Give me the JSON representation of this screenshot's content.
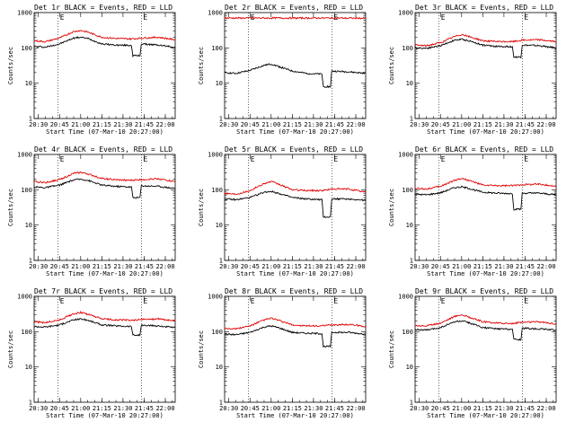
{
  "chart_data": [
    {
      "type": "line",
      "title": "Det 1r BLACK = Events, RED = LLD",
      "xlabel": "Start Time (07-Mar-10 20:27:00)",
      "ylabel": "Counts/sec",
      "ylim": [
        1,
        1000
      ],
      "yscale": "log",
      "xlim": [
        "20:27",
        "22:07"
      ],
      "xticks": [
        "20:30",
        "20:45",
        "21:00",
        "21:15",
        "21:30",
        "21:45",
        "22:00"
      ],
      "yticks": [
        "1",
        "10",
        "100",
        "1000"
      ],
      "markers": [
        {
          "x": "20:44",
          "label": "E"
        },
        {
          "x": "21:43",
          "label": "E"
        }
      ],
      "series": [
        {
          "name": "Events",
          "color": "#000000",
          "x": [
            "20:27",
            "20:35",
            "20:45",
            "20:55",
            "21:00",
            "21:05",
            "21:15",
            "21:25",
            "21:36",
            "21:37",
            "21:42",
            "21:43",
            "21:55",
            "22:07"
          ],
          "values": [
            110,
            105,
            130,
            190,
            200,
            185,
            130,
            120,
            118,
            60,
            60,
            130,
            120,
            105
          ]
        },
        {
          "name": "LLD",
          "color": "#e00000",
          "x": [
            "20:27",
            "20:35",
            "20:45",
            "20:55",
            "21:00",
            "21:05",
            "21:15",
            "21:25",
            "21:36",
            "21:43",
            "21:55",
            "22:07"
          ],
          "values": [
            160,
            150,
            190,
            290,
            310,
            280,
            200,
            185,
            180,
            190,
            200,
            170
          ]
        }
      ]
    },
    {
      "type": "line",
      "title": "Det 2r BLACK = Events, RED = LLD",
      "xlabel": "Start Time (07-Mar-10 20:27:00)",
      "ylabel": "Counts/sec",
      "ylim": [
        1,
        1000
      ],
      "yscale": "log",
      "xlim": [
        "20:27",
        "22:07"
      ],
      "xticks": [
        "20:30",
        "20:45",
        "21:00",
        "21:15",
        "21:30",
        "21:45",
        "22:00"
      ],
      "yticks": [
        "1",
        "10",
        "100",
        "1000"
      ],
      "markers": [
        {
          "x": "20:44",
          "label": "E"
        },
        {
          "x": "21:43",
          "label": "E"
        }
      ],
      "series": [
        {
          "name": "Events",
          "color": "#000000",
          "x": [
            "20:27",
            "20:35",
            "20:45",
            "20:55",
            "21:00",
            "21:05",
            "21:15",
            "21:25",
            "21:36",
            "21:37",
            "21:42",
            "21:43",
            "21:55",
            "22:07"
          ],
          "values": [
            20,
            19,
            23,
            32,
            35,
            30,
            22,
            19,
            18,
            8,
            8,
            22,
            21,
            19
          ]
        },
        {
          "name": "LLD",
          "color": "#e00000",
          "x": [
            "20:27",
            "20:45",
            "21:00",
            "21:15",
            "21:30",
            "21:45",
            "22:07"
          ],
          "values": [
            700,
            700,
            700,
            700,
            700,
            700,
            690
          ]
        }
      ]
    },
    {
      "type": "line",
      "title": "Det 3r BLACK = Events, RED = LLD",
      "xlabel": "Start Time (07-Mar-10 20:27:00)",
      "ylabel": "Counts/sec",
      "ylim": [
        1,
        1000
      ],
      "yscale": "log",
      "xlim": [
        "20:27",
        "22:07"
      ],
      "xticks": [
        "20:30",
        "20:45",
        "21:00",
        "21:15",
        "21:30",
        "21:45",
        "22:00"
      ],
      "yticks": [
        "1",
        "10",
        "100",
        "1000"
      ],
      "markers": [
        {
          "x": "20:44",
          "label": "E"
        },
        {
          "x": "21:43",
          "label": "E"
        }
      ],
      "series": [
        {
          "name": "Events",
          "color": "#000000",
          "x": [
            "20:27",
            "20:35",
            "20:45",
            "20:55",
            "21:00",
            "21:05",
            "21:15",
            "21:25",
            "21:36",
            "21:37",
            "21:42",
            "21:43",
            "21:55",
            "22:07"
          ],
          "values": [
            100,
            98,
            115,
            165,
            175,
            160,
            120,
            110,
            108,
            55,
            55,
            120,
            115,
            100
          ]
        },
        {
          "name": "LLD",
          "color": "#e00000",
          "x": [
            "20:27",
            "20:35",
            "20:45",
            "20:55",
            "21:00",
            "21:05",
            "21:15",
            "21:25",
            "21:36",
            "21:43",
            "21:55",
            "22:07"
          ],
          "values": [
            120,
            115,
            140,
            210,
            240,
            210,
            160,
            150,
            150,
            165,
            170,
            150
          ]
        }
      ]
    },
    {
      "type": "line",
      "title": "Det 4r BLACK = Events, RED = LLD",
      "xlabel": "Start Time (07-Mar-10 20:27:00)",
      "ylabel": "Counts/sec",
      "ylim": [
        1,
        1000
      ],
      "yscale": "log",
      "xlim": [
        "20:27",
        "22:07"
      ],
      "xticks": [
        "20:30",
        "20:45",
        "21:00",
        "21:15",
        "21:30",
        "21:45",
        "22:00"
      ],
      "yticks": [
        "1",
        "10",
        "100",
        "1000"
      ],
      "markers": [
        {
          "x": "20:44",
          "label": "E"
        },
        {
          "x": "21:43",
          "label": "E"
        }
      ],
      "series": [
        {
          "name": "Events",
          "color": "#000000",
          "x": [
            "20:27",
            "20:35",
            "20:45",
            "20:55",
            "21:00",
            "21:05",
            "21:15",
            "21:25",
            "21:36",
            "21:37",
            "21:42",
            "21:43",
            "21:55",
            "22:07"
          ],
          "values": [
            120,
            115,
            135,
            190,
            200,
            185,
            135,
            125,
            120,
            60,
            60,
            130,
            125,
            110
          ]
        },
        {
          "name": "LLD",
          "color": "#e00000",
          "x": [
            "20:27",
            "20:35",
            "20:45",
            "20:55",
            "21:00",
            "21:05",
            "21:15",
            "21:25",
            "21:36",
            "21:43",
            "21:55",
            "22:07"
          ],
          "values": [
            170,
            160,
            195,
            290,
            310,
            280,
            210,
            190,
            185,
            195,
            205,
            170
          ]
        }
      ]
    },
    {
      "type": "line",
      "title": "Det 5r BLACK = Events, RED = LLD",
      "xlabel": "Start Time (07-Mar-10 20:27:00)",
      "ylabel": "Counts/sec",
      "ylim": [
        1,
        1000
      ],
      "yscale": "log",
      "xlim": [
        "20:27",
        "22:07"
      ],
      "xticks": [
        "20:30",
        "20:45",
        "21:00",
        "21:15",
        "21:30",
        "21:45",
        "22:00"
      ],
      "yticks": [
        "1",
        "10",
        "100",
        "1000"
      ],
      "markers": [
        {
          "x": "20:44",
          "label": "E"
        },
        {
          "x": "21:43",
          "label": "E"
        }
      ],
      "series": [
        {
          "name": "Events",
          "color": "#000000",
          "x": [
            "20:27",
            "20:35",
            "20:45",
            "20:55",
            "21:00",
            "21:05",
            "21:15",
            "21:25",
            "21:36",
            "21:37",
            "21:42",
            "21:43",
            "21:55",
            "22:07"
          ],
          "values": [
            55,
            52,
            60,
            85,
            90,
            80,
            60,
            55,
            52,
            17,
            17,
            55,
            55,
            50
          ]
        },
        {
          "name": "LLD",
          "color": "#e00000",
          "x": [
            "20:27",
            "20:35",
            "20:45",
            "20:55",
            "21:00",
            "21:05",
            "21:15",
            "21:25",
            "21:36",
            "21:43",
            "21:55",
            "22:07"
          ],
          "values": [
            80,
            75,
            95,
            150,
            170,
            145,
            100,
            95,
            95,
            105,
            105,
            85
          ]
        }
      ]
    },
    {
      "type": "line",
      "title": "Det 6r BLACK = Events, RED = LLD",
      "xlabel": "Start Time (07-Mar-10 20:27:00)",
      "ylabel": "Counts/sec",
      "ylim": [
        1,
        1000
      ],
      "yscale": "log",
      "xlim": [
        "20:27",
        "22:07"
      ],
      "xticks": [
        "20:30",
        "20:45",
        "21:00",
        "21:15",
        "21:30",
        "21:45",
        "22:00"
      ],
      "yticks": [
        "1",
        "10",
        "100",
        "1000"
      ],
      "markers": [
        {
          "x": "20:44",
          "label": "E"
        },
        {
          "x": "21:43",
          "label": "E"
        }
      ],
      "series": [
        {
          "name": "Events",
          "color": "#000000",
          "x": [
            "20:27",
            "20:35",
            "20:45",
            "20:55",
            "21:00",
            "21:05",
            "21:15",
            "21:25",
            "21:36",
            "21:37",
            "21:42",
            "21:43",
            "21:55",
            "22:07"
          ],
          "values": [
            75,
            72,
            82,
            115,
            120,
            110,
            85,
            80,
            78,
            28,
            28,
            80,
            80,
            72
          ]
        },
        {
          "name": "LLD",
          "color": "#e00000",
          "x": [
            "20:27",
            "20:35",
            "20:45",
            "20:55",
            "21:00",
            "21:05",
            "21:15",
            "21:25",
            "21:36",
            "21:43",
            "21:55",
            "22:07"
          ],
          "values": [
            110,
            105,
            125,
            185,
            210,
            185,
            135,
            130,
            130,
            140,
            145,
            125
          ]
        }
      ]
    },
    {
      "type": "line",
      "title": "Det 7r BLACK = Events, RED = LLD",
      "xlabel": "Start Time (07-Mar-10 20:27:00)",
      "ylabel": "Counts/sec",
      "ylim": [
        1,
        1000
      ],
      "yscale": "log",
      "xlim": [
        "20:27",
        "22:07"
      ],
      "xticks": [
        "20:30",
        "20:45",
        "21:00",
        "21:15",
        "21:30",
        "21:45",
        "22:00"
      ],
      "yticks": [
        "1",
        "10",
        "100",
        "1000"
      ],
      "markers": [
        {
          "x": "20:44",
          "label": "E"
        },
        {
          "x": "21:43",
          "label": "E"
        }
      ],
      "series": [
        {
          "name": "Events",
          "color": "#000000",
          "x": [
            "20:27",
            "20:35",
            "20:45",
            "20:55",
            "21:00",
            "21:05",
            "21:15",
            "21:25",
            "21:36",
            "21:37",
            "21:42",
            "21:43",
            "21:55",
            "22:07"
          ],
          "values": [
            140,
            135,
            155,
            215,
            230,
            210,
            155,
            145,
            140,
            80,
            80,
            150,
            145,
            130
          ]
        },
        {
          "name": "LLD",
          "color": "#e00000",
          "x": [
            "20:27",
            "20:35",
            "20:45",
            "20:55",
            "21:00",
            "21:05",
            "21:15",
            "21:25",
            "21:36",
            "21:43",
            "21:55",
            "22:07"
          ],
          "values": [
            190,
            180,
            215,
            320,
            350,
            310,
            230,
            215,
            210,
            220,
            230,
            200
          ]
        }
      ]
    },
    {
      "type": "line",
      "title": "Det 8r BLACK = Events, RED = LLD",
      "xlabel": "Start Time (07-Mar-10 20:27:00)",
      "ylabel": "Counts/sec",
      "ylim": [
        1,
        1000
      ],
      "yscale": "log",
      "xlim": [
        "20:27",
        "22:07"
      ],
      "xticks": [
        "20:30",
        "20:45",
        "21:00",
        "21:15",
        "21:30",
        "21:45",
        "22:00"
      ],
      "yticks": [
        "1",
        "10",
        "100",
        "1000"
      ],
      "markers": [
        {
          "x": "20:44",
          "label": "E"
        },
        {
          "x": "21:43",
          "label": "E"
        }
      ],
      "series": [
        {
          "name": "Events",
          "color": "#000000",
          "x": [
            "20:27",
            "20:35",
            "20:45",
            "20:55",
            "21:00",
            "21:05",
            "21:15",
            "21:25",
            "21:36",
            "21:37",
            "21:42",
            "21:43",
            "21:55",
            "22:07"
          ],
          "values": [
            85,
            82,
            95,
            135,
            145,
            130,
            95,
            90,
            88,
            38,
            38,
            95,
            95,
            85
          ]
        },
        {
          "name": "LLD",
          "color": "#e00000",
          "x": [
            "20:27",
            "20:35",
            "20:45",
            "20:55",
            "21:00",
            "21:05",
            "21:15",
            "21:25",
            "21:36",
            "21:43",
            "21:55",
            "22:07"
          ],
          "values": [
            125,
            120,
            145,
            215,
            240,
            210,
            155,
            145,
            145,
            155,
            160,
            140
          ]
        }
      ]
    },
    {
      "type": "line",
      "title": "Det 9r BLACK = Events, RED = LLD",
      "xlabel": "Start Time (07-Mar-10 20:27:00)",
      "ylabel": "Counts/sec",
      "ylim": [
        1,
        1000
      ],
      "yscale": "log",
      "xlim": [
        "20:27",
        "22:07"
      ],
      "xticks": [
        "20:30",
        "20:45",
        "21:00",
        "21:15",
        "21:30",
        "21:45",
        "22:00"
      ],
      "yticks": [
        "1",
        "10",
        "100",
        "1000"
      ],
      "markers": [
        {
          "x": "20:44",
          "label": "E"
        },
        {
          "x": "21:43",
          "label": "E"
        }
      ],
      "series": [
        {
          "name": "Events",
          "color": "#000000",
          "x": [
            "20:27",
            "20:35",
            "20:45",
            "20:55",
            "21:00",
            "21:05",
            "21:15",
            "21:25",
            "21:36",
            "21:37",
            "21:42",
            "21:43",
            "21:55",
            "22:07"
          ],
          "values": [
            115,
            110,
            130,
            190,
            200,
            180,
            130,
            120,
            118,
            60,
            60,
            125,
            120,
            110
          ]
        },
        {
          "name": "LLD",
          "color": "#e00000",
          "x": [
            "20:27",
            "20:35",
            "20:45",
            "20:55",
            "21:00",
            "21:05",
            "21:15",
            "21:25",
            "21:36",
            "21:43",
            "21:55",
            "22:07"
          ],
          "values": [
            150,
            145,
            175,
            270,
            300,
            260,
            190,
            175,
            170,
            185,
            190,
            165
          ]
        }
      ]
    }
  ]
}
